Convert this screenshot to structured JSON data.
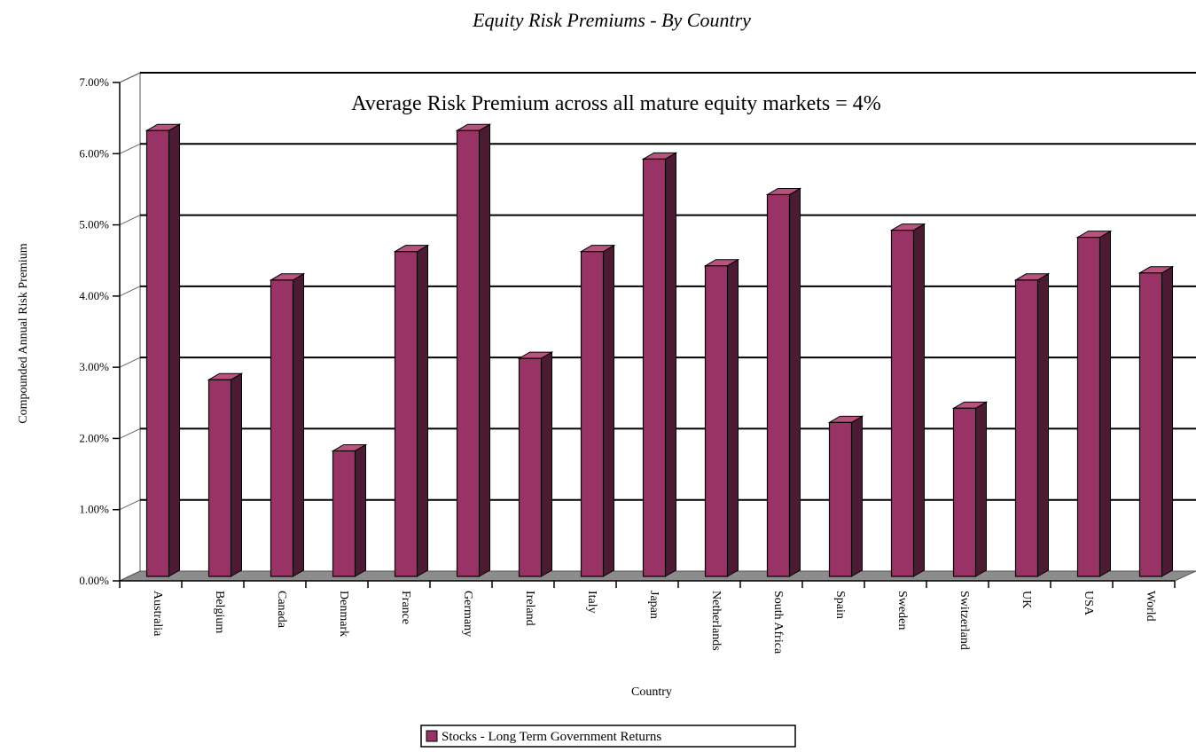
{
  "chart_data": {
    "type": "bar",
    "title": "Equity Risk Premiums - By Country",
    "annotation": "Average Risk Premium across all mature equity markets = 4%",
    "xlabel": "Country",
    "ylabel": "Compounded Annual Risk Premium",
    "ylim": [
      0,
      7
    ],
    "yticks": [
      {
        "value": 0,
        "label": "0.00%"
      },
      {
        "value": 1,
        "label": "1.00%"
      },
      {
        "value": 2,
        "label": "2.00%"
      },
      {
        "value": 3,
        "label": "3.00%"
      },
      {
        "value": 4,
        "label": "4.00%"
      },
      {
        "value": 5,
        "label": "5.00%"
      },
      {
        "value": 6,
        "label": "6.00%"
      },
      {
        "value": 7,
        "label": "7.00%"
      }
    ],
    "categories": [
      "Australia",
      "Belgium",
      "Canada",
      "Denmark",
      "France",
      "Germany",
      "Ireland",
      "Italy",
      "Japan",
      "Netherlands",
      "South Africa",
      "Spain",
      "Sweden",
      "Switzerland",
      "UK",
      "USA",
      "World"
    ],
    "series": [
      {
        "name": "Stocks - Long Term Government Returns",
        "values": [
          6.3,
          2.8,
          4.2,
          1.8,
          4.6,
          6.3,
          3.1,
          4.6,
          5.9,
          4.4,
          5.4,
          2.2,
          4.9,
          2.4,
          4.2,
          4.8,
          4.3
        ]
      }
    ],
    "grid": true,
    "legend": "bottom-center",
    "colors": {
      "bar_front": "#993366",
      "bar_side": "#4d1a33",
      "bar_top": "#b8527f",
      "floor": "#8c8c8c",
      "wall": "#ffffff",
      "grid": "#000000"
    }
  }
}
